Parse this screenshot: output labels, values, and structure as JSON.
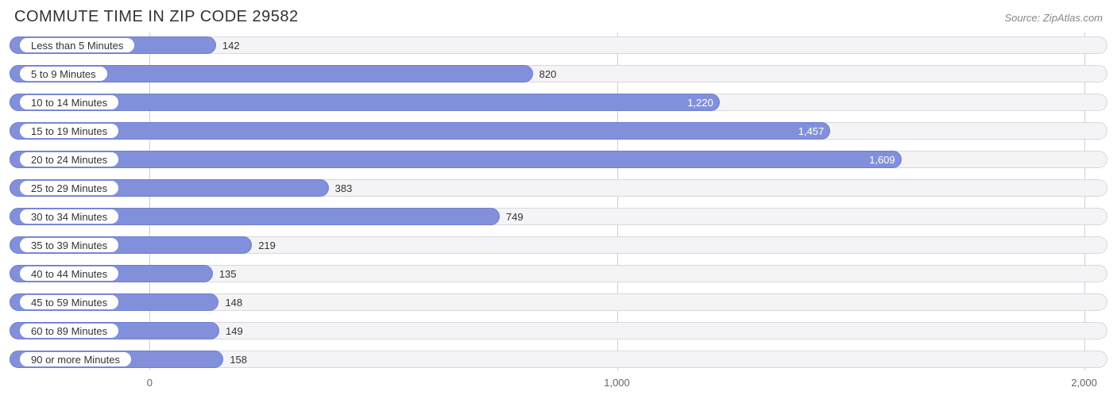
{
  "title": "COMMUTE TIME IN ZIP CODE 29582",
  "source": "Source: ZipAtlas.com",
  "chart": {
    "type": "bar",
    "orientation": "horizontal",
    "xmin": -300,
    "xmax": 2050,
    "axis_label_color": "#666666",
    "pill_text_color": "#333333",
    "value_text_dark": "#333333",
    "value_text_light": "#ffffff",
    "track_bg": "#f4f4f6",
    "track_border": "#d9d9dd",
    "bar_color": "#8290dc",
    "bar_border": "#6e7ecb",
    "pill_border": "#8290dc",
    "grid_color": "#cfcfd3",
    "value_inside_threshold": 1100,
    "ticks": [
      {
        "value": 0,
        "label": "0"
      },
      {
        "value": 1000,
        "label": "1,000"
      },
      {
        "value": 2000,
        "label": "2,000"
      }
    ],
    "categories": [
      {
        "label": "Less than 5 Minutes",
        "value": 142,
        "display": "142"
      },
      {
        "label": "5 to 9 Minutes",
        "value": 820,
        "display": "820"
      },
      {
        "label": "10 to 14 Minutes",
        "value": 1220,
        "display": "1,220"
      },
      {
        "label": "15 to 19 Minutes",
        "value": 1457,
        "display": "1,457"
      },
      {
        "label": "20 to 24 Minutes",
        "value": 1609,
        "display": "1,609"
      },
      {
        "label": "25 to 29 Minutes",
        "value": 383,
        "display": "383"
      },
      {
        "label": "30 to 34 Minutes",
        "value": 749,
        "display": "749"
      },
      {
        "label": "35 to 39 Minutes",
        "value": 219,
        "display": "219"
      },
      {
        "label": "40 to 44 Minutes",
        "value": 135,
        "display": "135"
      },
      {
        "label": "45 to 59 Minutes",
        "value": 148,
        "display": "148"
      },
      {
        "label": "60 to 89 Minutes",
        "value": 149,
        "display": "149"
      },
      {
        "label": "90 or more Minutes",
        "value": 158,
        "display": "158"
      }
    ]
  }
}
